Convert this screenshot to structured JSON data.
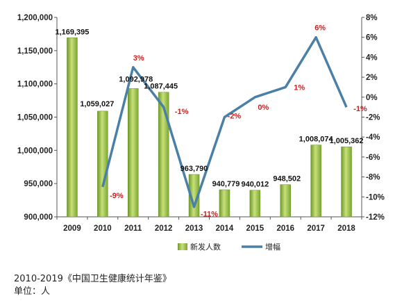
{
  "chart_data": {
    "type": "bar",
    "categories": [
      "2009",
      "2010",
      "2011",
      "2012",
      "2013",
      "2014",
      "2015",
      "2016",
      "2017",
      "2018"
    ],
    "series": [
      {
        "name": "新发人数",
        "type": "bar",
        "axis": "left",
        "color": "#8cb83a",
        "values": [
          1169395,
          1059027,
          1092978,
          1087445,
          963790,
          940779,
          940012,
          948502,
          1008074,
          1005362
        ],
        "labels": [
          "1,169,395",
          "1,059,027",
          "1,092,978",
          "1,087,445",
          "963,790",
          "940,779",
          "940,012",
          "948,502",
          "1,008,074",
          "1,005,362"
        ]
      },
      {
        "name": "增幅",
        "type": "line",
        "axis": "right",
        "color": "#4a7fa8",
        "values": [
          null,
          -9,
          3,
          -1,
          -11,
          -2,
          0,
          1,
          6,
          -1
        ],
        "labels": [
          "",
          "-9%",
          "3%",
          "-1%",
          "-11%",
          "-2%",
          "0%",
          "1%",
          "6%",
          "-1%"
        ]
      }
    ],
    "y_left": {
      "min": 900000,
      "max": 1200000,
      "step": 50000,
      "tick_labels": [
        "900,000",
        "950,000",
        "1,000,000",
        "1,050,000",
        "1,100,000",
        "1,150,000",
        "1,200,000"
      ]
    },
    "y_right": {
      "min": -12,
      "max": 8,
      "step": 2,
      "tick_labels": [
        "-12%",
        "-10%",
        "-8%",
        "-6%",
        "-4%",
        "-2%",
        "0%",
        "2%",
        "4%",
        "6%",
        "8%"
      ]
    },
    "grid": false,
    "legend_position": "bottom"
  },
  "footnote": {
    "source": "2010-2019《中国卫生健康统计年鉴》",
    "unit": "单位：人"
  }
}
